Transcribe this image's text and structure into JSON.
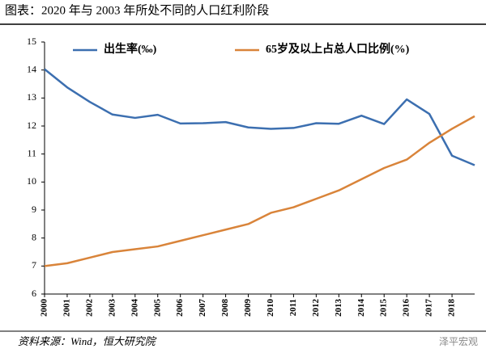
{
  "chart_data": {
    "type": "line",
    "title": "图表：2020 年与 2003 年所处不同的人口红利阶段",
    "categories": [
      "2000",
      "2001",
      "2002",
      "2003",
      "2004",
      "2005",
      "2006",
      "2007",
      "2008",
      "2009",
      "2010",
      "2011",
      "2012",
      "2013",
      "2014",
      "2015",
      "2016",
      "2017",
      "2018",
      null
    ],
    "series": [
      {
        "name": "出生率(‰)",
        "color": "#3c6fb0",
        "values": [
          14.03,
          13.38,
          12.86,
          12.41,
          12.29,
          12.4,
          12.09,
          12.1,
          12.14,
          11.95,
          11.9,
          11.93,
          12.1,
          12.08,
          12.37,
          12.07,
          12.95,
          12.43,
          10.94,
          10.6
        ]
      },
      {
        "name": "65岁及以上占总人口比例(%)",
        "color": "#d9843a",
        "values": [
          7.0,
          7.1,
          7.3,
          7.5,
          7.6,
          7.7,
          7.9,
          8.1,
          8.3,
          8.5,
          8.9,
          9.1,
          9.4,
          9.7,
          10.1,
          10.5,
          10.8,
          11.4,
          11.9,
          12.35
        ]
      }
    ],
    "ylim": [
      6,
      15
    ],
    "yticks": [
      6,
      7,
      8,
      9,
      10,
      11,
      12,
      13,
      14,
      15
    ],
    "source": "资料来源：Wind，恒大研究院",
    "watermark": "泽平宏观"
  }
}
